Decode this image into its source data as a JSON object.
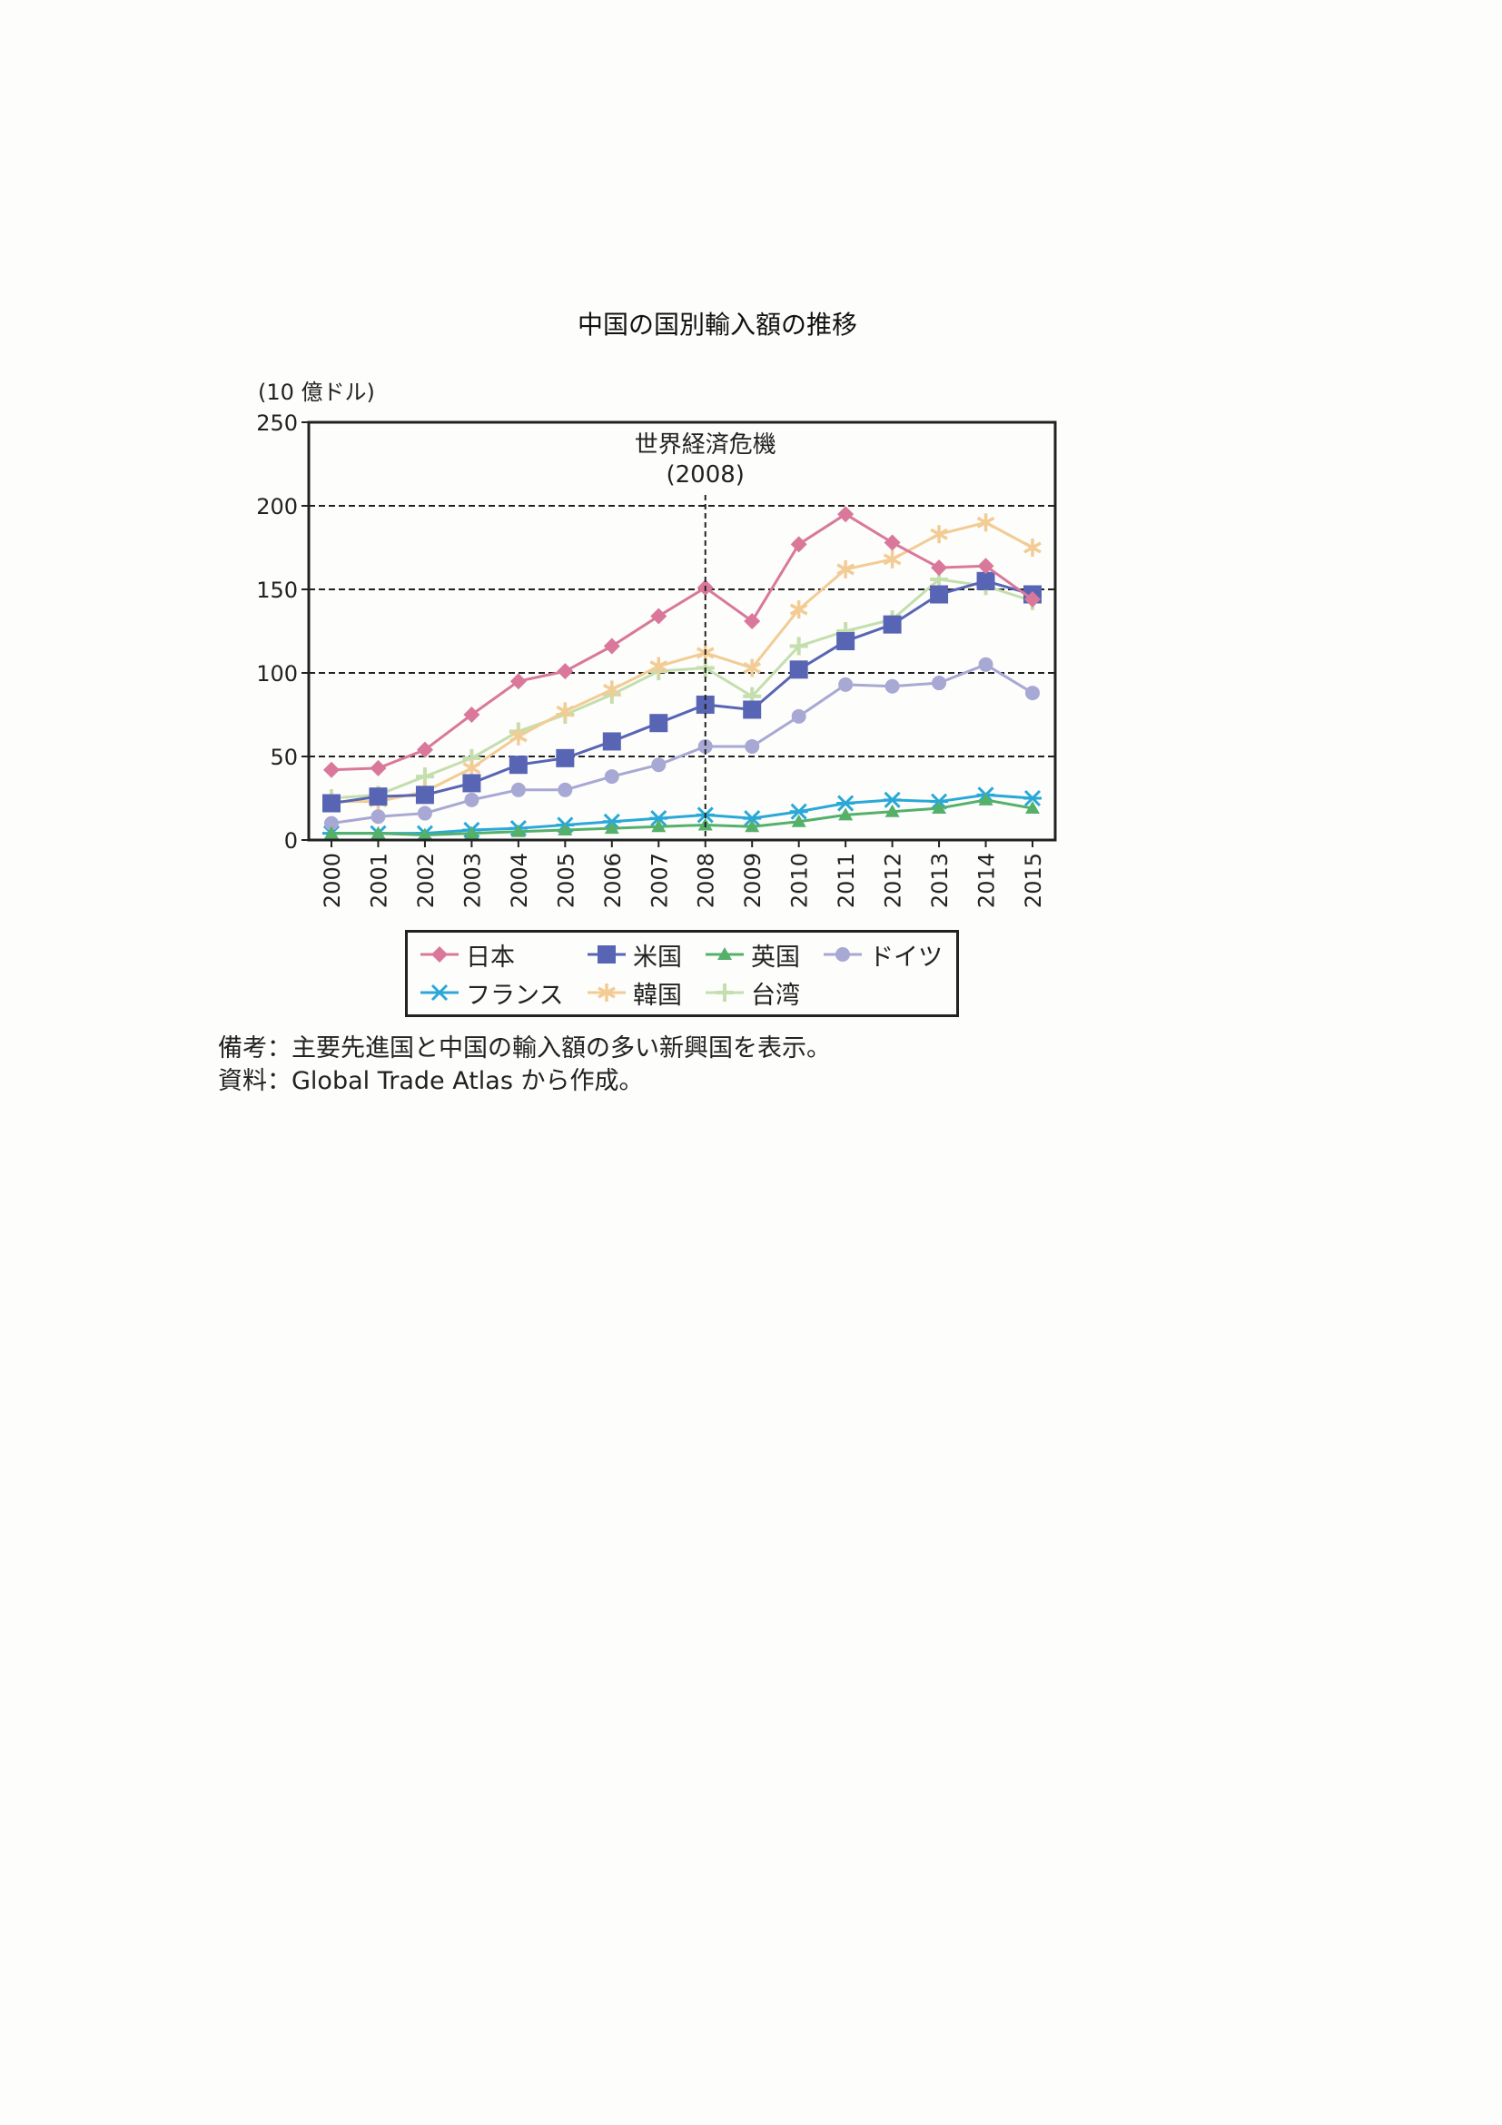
{
  "title": "中国の国別輸入額の推移",
  "notes": {
    "remarks": "備考：主要先進国と中国の輸入額の多い新興国を表示。",
    "source": "資料：Global Trade Atlas から作成。"
  },
  "chart_data": {
    "type": "line",
    "ylabel": "(10 億ドル)",
    "ylim": [
      0,
      250
    ],
    "yticks": [
      0,
      50,
      100,
      150,
      200,
      250
    ],
    "x": [
      "2000",
      "2001",
      "2002",
      "2003",
      "2004",
      "2005",
      "2006",
      "2007",
      "2008",
      "2009",
      "2010",
      "2011",
      "2012",
      "2013",
      "2014",
      "2015"
    ],
    "grid": "horizontal dashed",
    "annotation": {
      "lines": [
        "世界経済危機",
        "(2008)"
      ],
      "x": "2008"
    },
    "legend_position": "bottom",
    "series": [
      {
        "name": "日本",
        "marker": "diamond",
        "color": "#d9789a",
        "values": [
          42,
          43,
          54,
          75,
          95,
          101,
          116,
          134,
          151,
          131,
          177,
          195,
          178,
          163,
          164,
          144
        ]
      },
      {
        "name": "米国",
        "marker": "square",
        "color": "#5865b4",
        "values": [
          22,
          26,
          27,
          34,
          45,
          49,
          59,
          70,
          81,
          78,
          102,
          119,
          129,
          147,
          155,
          147
        ]
      },
      {
        "name": "英国",
        "marker": "triangle",
        "color": "#55b06a",
        "values": [
          4,
          4,
          3,
          4,
          5,
          6,
          7,
          8,
          9,
          8,
          11,
          15,
          17,
          19,
          24,
          19
        ]
      },
      {
        "name": "ドイツ",
        "marker": "circle",
        "color": "#a8a8d4",
        "values": [
          10,
          14,
          16,
          24,
          30,
          30,
          38,
          45,
          56,
          56,
          74,
          93,
          92,
          94,
          105,
          88
        ]
      },
      {
        "name": "フランス",
        "marker": "x",
        "color": "#2aa8d8",
        "values": [
          4,
          4,
          4,
          6,
          7,
          9,
          11,
          13,
          15,
          13,
          17,
          22,
          24,
          23,
          27,
          25
        ]
      },
      {
        "name": "韓国",
        "marker": "star",
        "color": "#f2cc94",
        "values": [
          23,
          23,
          29,
          43,
          62,
          77,
          90,
          104,
          112,
          103,
          138,
          162,
          168,
          183,
          190,
          175
        ]
      },
      {
        "name": "台湾",
        "marker": "plus",
        "color": "#c4deae",
        "values": [
          25,
          27,
          38,
          49,
          65,
          75,
          87,
          101,
          103,
          86,
          116,
          125,
          132,
          156,
          152,
          143
        ]
      }
    ]
  }
}
